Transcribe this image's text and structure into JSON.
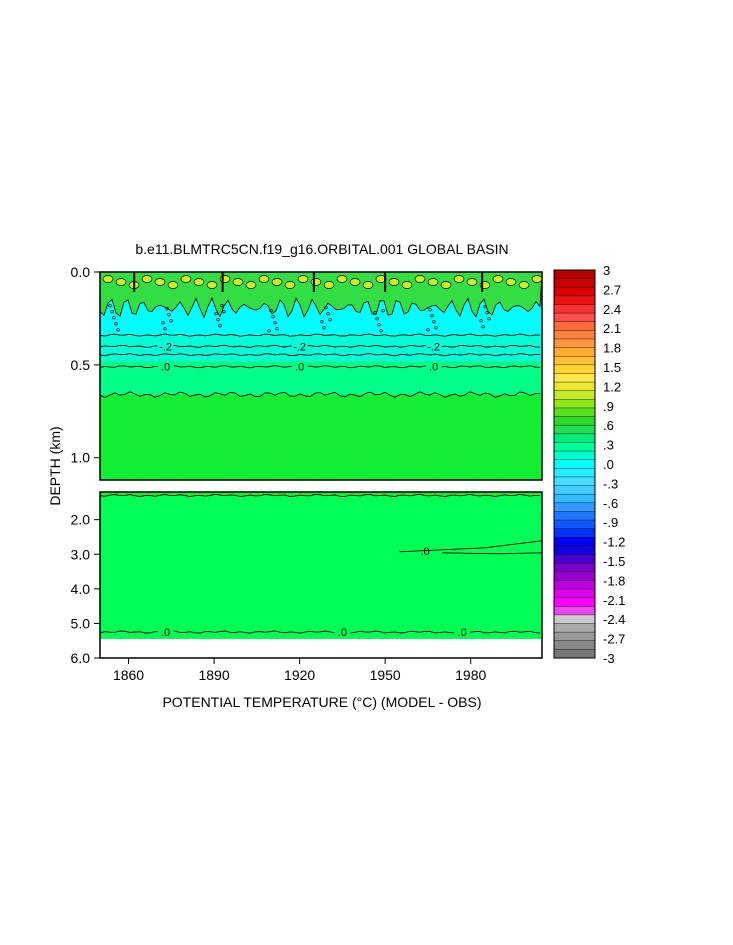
{
  "chart_data": {
    "type": "heatmap",
    "title": "b.e11.BLMTRC5CN.f19_g16.ORBITAL.001 GLOBAL BASIN",
    "xlabel": "POTENTIAL TEMPERATURE (°C) (MODEL - OBS)",
    "ylabel": "DEPTH (km)",
    "x_ticks": [
      1860,
      1890,
      1920,
      1950,
      1980
    ],
    "xlim": [
      1850,
      2005
    ],
    "upper_panel": {
      "ylim": [
        0.0,
        1.12
      ],
      "y_ticks": [
        "0.0",
        "0.5",
        "1.0"
      ],
      "y_tick_values": [
        0.0,
        0.5,
        1.0
      ],
      "bands": [
        {
          "top": 0.0,
          "bottom": 0.16,
          "value": 0.45,
          "color": "#33dd44"
        },
        {
          "top": 0.16,
          "bottom": 0.34,
          "value": -0.35,
          "color": "#00ffff"
        },
        {
          "top": 0.34,
          "bottom": 0.48,
          "value": -0.15,
          "color": "#00ffd8"
        },
        {
          "top": 0.48,
          "bottom": 0.66,
          "value": 0.0,
          "color": "#00ff88"
        },
        {
          "top": 0.66,
          "bottom": 1.12,
          "value": 0.1,
          "color": "#11ee33"
        }
      ],
      "contours": [
        {
          "depth": 0.34,
          "label": ""
        },
        {
          "depth": 0.4,
          "label": "-.2"
        },
        {
          "depth": 0.445,
          "label": ""
        },
        {
          "depth": 0.51,
          "label": ".0"
        },
        {
          "depth": 0.66,
          "label": ""
        }
      ],
      "contour_label_years": [
        1873,
        1920,
        1967
      ]
    },
    "lower_panel": {
      "ylim": [
        1.2,
        6.0
      ],
      "y_ticks": [
        "2.0",
        "3.0",
        "4.0",
        "5.0",
        "6.0"
      ],
      "y_tick_values": [
        2.0,
        3.0,
        4.0,
        5.0,
        6.0
      ],
      "bands": [
        {
          "top": 1.2,
          "bottom": 1.3,
          "value": 0.1,
          "color": "#11ee33"
        },
        {
          "top": 1.3,
          "bottom": 5.25,
          "value": 0.0,
          "color": "#00ff55"
        },
        {
          "top": 5.25,
          "bottom": 5.45,
          "value": 0.05,
          "color": "#00ff55"
        },
        {
          "top": 5.45,
          "bottom": 6.0,
          "value": null,
          "color": "#ffffff"
        }
      ],
      "contours": [
        {
          "depth": 1.3,
          "label": ""
        },
        {
          "depth": 5.25,
          "label": ".0"
        }
      ],
      "contour_label_years": [
        1873,
        1935,
        1977
      ],
      "extra_label": {
        "year": 1964,
        "depth": 2.9,
        "label": ".0"
      }
    },
    "colorbar": {
      "levels": [
        "3",
        "2.7",
        "2.4",
        "2.1",
        "1.8",
        "1.5",
        "1.2",
        ".9",
        ".6",
        ".3",
        ".0",
        "-.3",
        "-.6",
        "-.9",
        "-1.2",
        "-1.5",
        "-1.8",
        "-2.1",
        "-2.4",
        "-2.7",
        "-3"
      ],
      "colors": [
        "#b40000",
        "#c80000",
        "#dc0000",
        "#ee1111",
        "#ff3030",
        "#ff5050",
        "#ff6a3a",
        "#ff8040",
        "#ff9640",
        "#ffaa33",
        "#ffc033",
        "#ffd633",
        "#ffe64a",
        "#e8e830",
        "#c4e824",
        "#90e81c",
        "#5ae020",
        "#2ed828",
        "#22dd55",
        "#00ee77",
        "#00ff99",
        "#00ffcc",
        "#00ffff",
        "#22eeff",
        "#44ddff",
        "#44ccff",
        "#33bbff",
        "#3399ff",
        "#2277ff",
        "#1155ff",
        "#0033ff",
        "#0000ee",
        "#1100dd",
        "#4400cc",
        "#7700cc",
        "#9900cc",
        "#bb00dd",
        "#dd00ee",
        "#ff00ff",
        "#ee44ee",
        "#cccccc",
        "#aaaaaa",
        "#999999",
        "#888888",
        "#777777"
      ]
    }
  }
}
